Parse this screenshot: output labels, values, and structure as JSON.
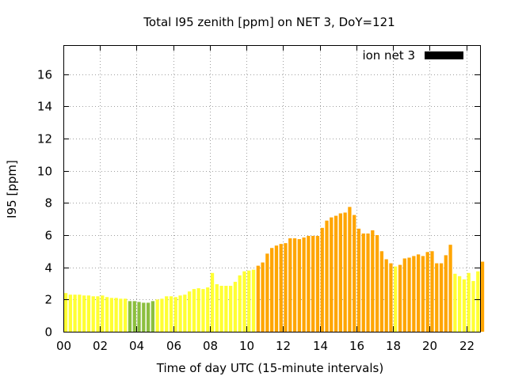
{
  "chart_data": {
    "type": "bar",
    "title": "Total I95 zenith [ppm] on NET 3, DoY=121",
    "xlabel": "Time of day UTC (15-minute intervals)",
    "ylabel": "I95 [ppm]",
    "xlim": [
      0,
      22.75
    ],
    "ylim": [
      0,
      17.8
    ],
    "bin_width_hours": 0.25,
    "x_ticks": [
      "00",
      "02",
      "04",
      "06",
      "08",
      "10",
      "12",
      "14",
      "16",
      "18",
      "20",
      "22"
    ],
    "y_ticks": [
      "0",
      "2",
      "4",
      "6",
      "8",
      "10",
      "12",
      "14",
      "16"
    ],
    "grid": true,
    "legend": {
      "position": "top-right",
      "entries": [
        {
          "label": "ion net 3",
          "color": "#000000"
        }
      ]
    },
    "level_colors": {
      "green": "#8cbf3f",
      "yellow": "#ffff33",
      "orange": "#ffa500"
    },
    "series": [
      {
        "name": "ion net 3",
        "values": [
          2.4,
          2.3,
          2.3,
          2.3,
          2.25,
          2.25,
          2.2,
          2.2,
          2.25,
          2.15,
          2.1,
          2.1,
          2.05,
          2.05,
          1.9,
          1.9,
          1.85,
          1.8,
          1.8,
          1.9,
          2.0,
          2.05,
          2.2,
          2.2,
          2.15,
          2.25,
          2.3,
          2.5,
          2.65,
          2.7,
          2.65,
          2.75,
          3.65,
          2.95,
          2.85,
          2.85,
          2.85,
          3.1,
          3.5,
          3.75,
          3.8,
          3.85,
          4.1,
          4.3,
          4.85,
          5.2,
          5.35,
          5.45,
          5.5,
          5.8,
          5.8,
          5.75,
          5.85,
          5.95,
          5.95,
          5.95,
          6.45,
          6.9,
          7.1,
          7.2,
          7.35,
          7.4,
          7.75,
          7.25,
          6.4,
          6.1,
          6.1,
          6.3,
          6.0,
          5.0,
          4.5,
          4.25,
          4.05,
          4.15,
          4.55,
          4.6,
          4.7,
          4.8,
          4.7,
          4.95,
          5.0,
          4.25,
          4.25,
          4.75,
          5.4,
          3.6,
          3.45,
          3.25,
          3.65,
          3.15,
          3.75,
          4.35
        ],
        "levels": [
          "yellow",
          "yellow",
          "yellow",
          "yellow",
          "yellow",
          "yellow",
          "yellow",
          "yellow",
          "yellow",
          "yellow",
          "yellow",
          "yellow",
          "yellow",
          "yellow",
          "green",
          "green",
          "green",
          "green",
          "green",
          "green",
          "yellow",
          "yellow",
          "yellow",
          "yellow",
          "yellow",
          "yellow",
          "yellow",
          "yellow",
          "yellow",
          "yellow",
          "yellow",
          "yellow",
          "yellow",
          "yellow",
          "yellow",
          "yellow",
          "yellow",
          "yellow",
          "yellow",
          "yellow",
          "yellow",
          "yellow",
          "orange",
          "orange",
          "orange",
          "orange",
          "orange",
          "orange",
          "orange",
          "orange",
          "orange",
          "orange",
          "orange",
          "orange",
          "orange",
          "orange",
          "orange",
          "orange",
          "orange",
          "orange",
          "orange",
          "orange",
          "orange",
          "orange",
          "orange",
          "orange",
          "orange",
          "orange",
          "orange",
          "orange",
          "orange",
          "orange",
          "yellow",
          "orange",
          "orange",
          "orange",
          "orange",
          "orange",
          "orange",
          "orange",
          "orange",
          "orange",
          "orange",
          "orange",
          "orange",
          "yellow",
          "yellow",
          "yellow",
          "yellow",
          "yellow",
          "yellow",
          "orange"
        ]
      }
    ]
  }
}
